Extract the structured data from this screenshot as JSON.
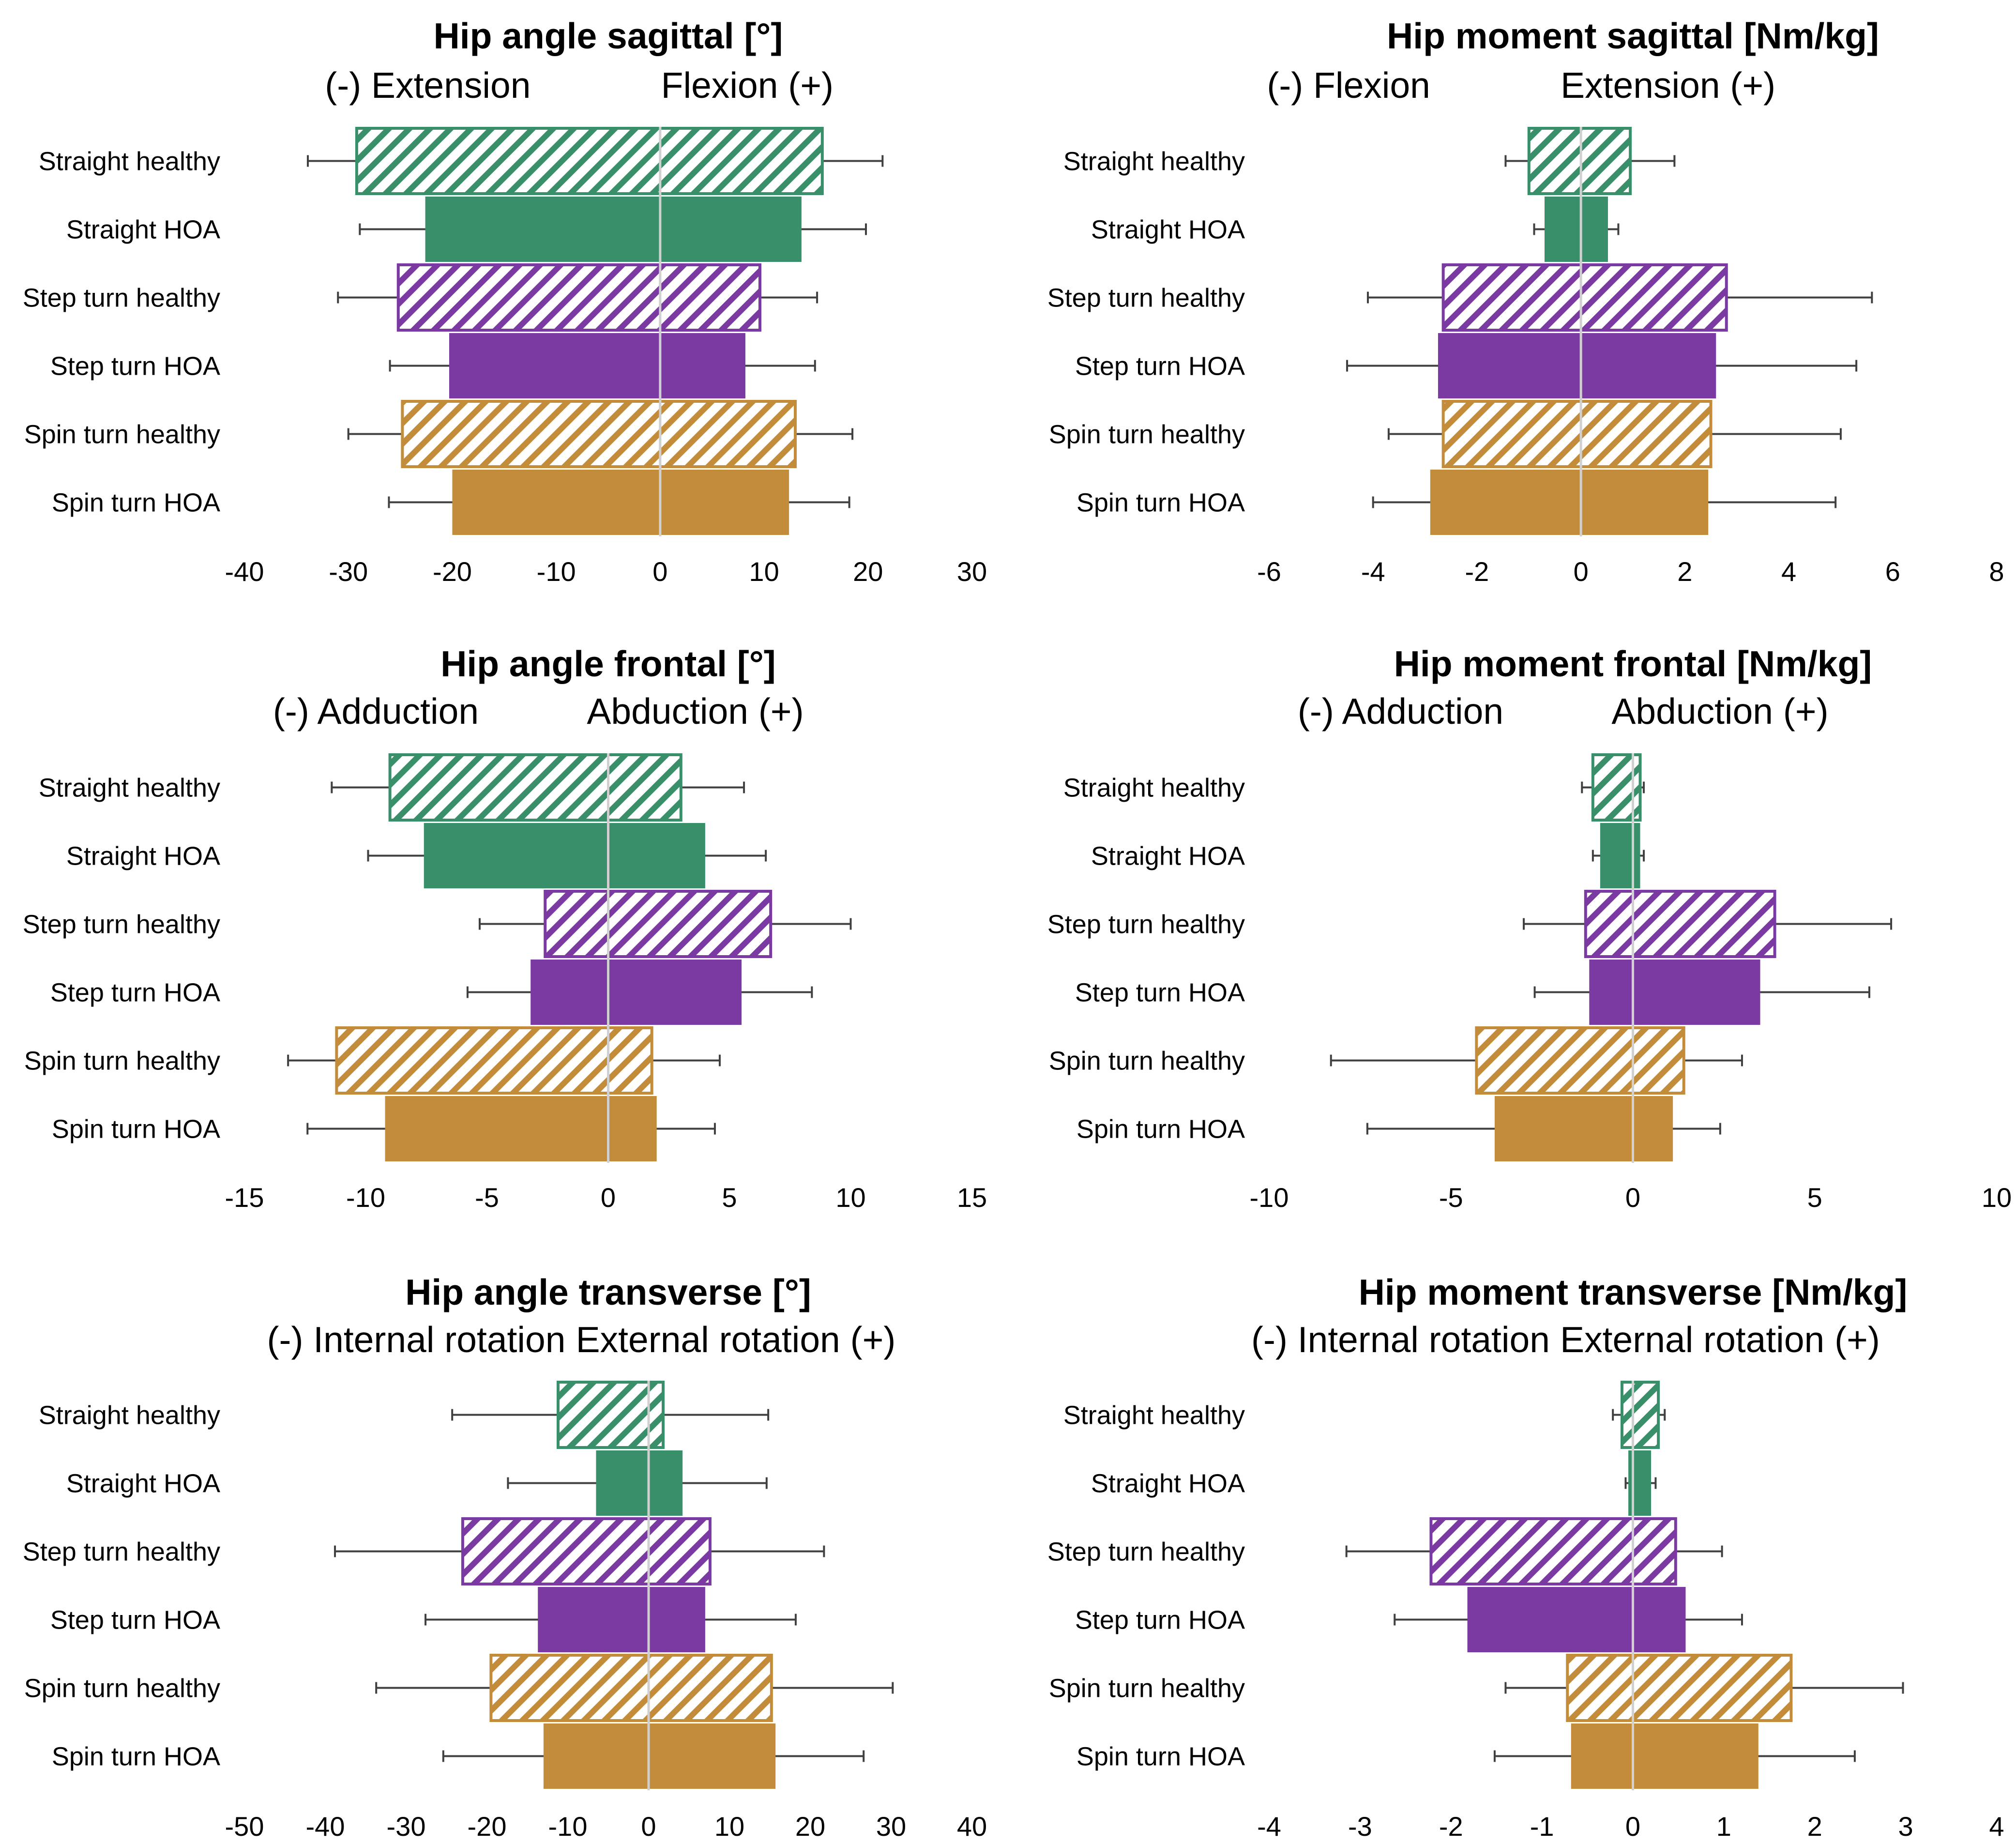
{
  "colors": {
    "green": "#3a8f6b",
    "purple": "#7a3aa2",
    "orange": "#c38c3a",
    "zero_line": "#d0d0d0",
    "error_bar": "#404040"
  },
  "chart_data": [
    {
      "type": "bar",
      "orientation": "horizontal-range",
      "title": "Hip angle sagittal [°]",
      "neg_label": "(-) Extension",
      "pos_label": "Flexion (+)",
      "xlim": [
        -40,
        30
      ],
      "ticks": [
        -40,
        -30,
        -20,
        -10,
        0,
        10,
        20,
        30
      ],
      "tick_labels": [
        "-40",
        "-30",
        "-20",
        "-10",
        "0",
        "10",
        "20",
        "30"
      ],
      "categories": [
        "Straight healthy",
        "Straight HOA",
        "Step turn healthy",
        "Step turn HOA",
        "Spin turn healthy",
        "Spin turn HOA"
      ],
      "min": [
        -29.2,
        -22.6,
        -25.2,
        -20.3,
        -24.8,
        -20.0
      ],
      "max": [
        15.6,
        13.6,
        9.6,
        8.2,
        13.0,
        12.4
      ],
      "min_err": [
        -33.9,
        -28.9,
        -31.0,
        -26.0,
        -30.0,
        -26.1
      ],
      "max_err": [
        21.4,
        19.8,
        15.1,
        14.9,
        18.5,
        18.2
      ],
      "colors": [
        "green",
        "green",
        "purple",
        "purple",
        "orange",
        "orange"
      ],
      "hatched": [
        true,
        false,
        true,
        false,
        true,
        false
      ]
    },
    {
      "type": "bar",
      "orientation": "horizontal-range",
      "title": "Hip moment sagittal [Nm/kg]",
      "neg_label": "(-) Flexion",
      "pos_label": "Extension (+)",
      "xlim": [
        -6,
        8
      ],
      "ticks": [
        -6,
        -4,
        -2,
        0,
        2,
        4,
        6,
        8
      ],
      "tick_labels": [
        "-6",
        "-4",
        "-2",
        "0",
        "2",
        "4",
        "6",
        "8"
      ],
      "categories": [
        "Straight healthy",
        "Straight HOA",
        "Step turn healthy",
        "Step turn HOA",
        "Spin turn healthy",
        "Spin turn HOA"
      ],
      "min": [
        -1.0,
        -0.7,
        -2.65,
        -2.75,
        -2.65,
        -2.9
      ],
      "max": [
        0.95,
        0.52,
        2.8,
        2.6,
        2.5,
        2.45
      ],
      "min_err": [
        -1.45,
        -0.9,
        -4.1,
        -4.5,
        -3.7,
        -4.0
      ],
      "max_err": [
        1.8,
        0.72,
        5.6,
        5.3,
        5.0,
        4.9
      ],
      "colors": [
        "green",
        "green",
        "purple",
        "purple",
        "orange",
        "orange"
      ],
      "hatched": [
        true,
        false,
        true,
        false,
        true,
        false
      ]
    },
    {
      "type": "bar",
      "orientation": "horizontal-range",
      "title": "Hip angle frontal [°]",
      "neg_label": "(-) Adduction",
      "pos_label": "Abduction (+)",
      "xlim": [
        -15,
        15
      ],
      "ticks": [
        -15,
        -10,
        -5,
        0,
        5,
        10,
        15
      ],
      "tick_labels": [
        "-15",
        "-10",
        "-5",
        "0",
        "5",
        "10",
        "15"
      ],
      "categories": [
        "Straight healthy",
        "Straight HOA",
        "Step turn healthy",
        "Step turn HOA",
        "Spin turn healthy",
        "Spin turn HOA"
      ],
      "min": [
        -9.0,
        -7.6,
        -2.6,
        -3.2,
        -11.2,
        -9.2
      ],
      "max": [
        3.0,
        4.0,
        6.7,
        5.5,
        1.8,
        2.0
      ],
      "min_err": [
        -11.4,
        -9.9,
        -5.3,
        -5.8,
        -13.2,
        -12.4
      ],
      "max_err": [
        5.6,
        6.5,
        10.0,
        8.4,
        4.6,
        4.4
      ],
      "colors": [
        "green",
        "green",
        "purple",
        "purple",
        "orange",
        "orange"
      ],
      "hatched": [
        true,
        false,
        true,
        false,
        true,
        false
      ]
    },
    {
      "type": "bar",
      "orientation": "horizontal-range",
      "title": "Hip moment frontal [Nm/kg]",
      "neg_label": "(-) Adduction",
      "pos_label": "Abduction (+)",
      "xlim": [
        -10,
        10
      ],
      "ticks": [
        -10,
        -5,
        0,
        5,
        10
      ],
      "tick_labels": [
        "-10",
        "-5",
        "0",
        "5",
        "10"
      ],
      "categories": [
        "Straight healthy",
        "Straight HOA",
        "Step turn healthy",
        "Step turn HOA",
        "Spin turn healthy",
        "Spin turn HOA"
      ],
      "min": [
        -1.1,
        -0.9,
        -1.3,
        -1.2,
        -4.3,
        -3.8
      ],
      "max": [
        0.2,
        0.2,
        3.9,
        3.5,
        1.4,
        1.1
      ],
      "min_err": [
        -1.4,
        -1.1,
        -3.0,
        -2.7,
        -8.3,
        -7.3
      ],
      "max_err": [
        0.3,
        0.3,
        7.1,
        6.5,
        3.0,
        2.4
      ],
      "colors": [
        "green",
        "green",
        "purple",
        "purple",
        "orange",
        "orange"
      ],
      "hatched": [
        true,
        false,
        true,
        false,
        true,
        false
      ]
    },
    {
      "type": "bar",
      "orientation": "horizontal-range",
      "title": "Hip angle transverse [°]",
      "neg_label": "(-) Internal rotation",
      "pos_label": "External rotation (+)",
      "xlim": [
        -50,
        40
      ],
      "ticks": [
        -50,
        -40,
        -30,
        -20,
        -10,
        0,
        10,
        20,
        30,
        40
      ],
      "tick_labels": [
        "-50",
        "-40",
        "-30",
        "-20",
        "-10",
        "0",
        "10",
        "20",
        "30",
        "40"
      ],
      "categories": [
        "Straight healthy",
        "Straight HOA",
        "Step turn healthy",
        "Step turn HOA",
        "Spin turn healthy",
        "Spin turn HOA"
      ],
      "min": [
        -11.2,
        -6.5,
        -23.0,
        -13.7,
        -19.5,
        -13.0
      ],
      "max": [
        1.8,
        4.2,
        7.6,
        7.0,
        15.2,
        15.7
      ],
      "min_err": [
        -24.3,
        -17.4,
        -38.8,
        -27.6,
        -33.7,
        -25.4
      ],
      "max_err": [
        14.8,
        14.6,
        21.7,
        18.2,
        30.2,
        26.6
      ],
      "colors": [
        "green",
        "green",
        "purple",
        "purple",
        "orange",
        "orange"
      ],
      "hatched": [
        true,
        false,
        true,
        false,
        true,
        false
      ]
    },
    {
      "type": "bar",
      "orientation": "horizontal-range",
      "title": "Hip moment transverse [Nm/kg]",
      "neg_label": "(-) Internal rotation",
      "pos_label": "External rotation (+)",
      "xlim": [
        -4,
        4
      ],
      "ticks": [
        -4,
        -3,
        -2,
        -1,
        0,
        1,
        2,
        3,
        4
      ],
      "tick_labels": [
        "-4",
        "-3",
        "-2",
        "-1",
        "0",
        "1",
        "2",
        "3",
        "4"
      ],
      "categories": [
        "Straight healthy",
        "Straight HOA",
        "Step turn healthy",
        "Step turn HOA",
        "Spin turn healthy",
        "Spin turn HOA"
      ],
      "min": [
        -0.12,
        -0.05,
        -2.22,
        -1.82,
        -0.72,
        -0.68
      ],
      "max": [
        0.28,
        0.2,
        0.47,
        0.58,
        1.74,
        1.38
      ],
      "min_err": [
        -0.22,
        -0.08,
        -3.15,
        -2.62,
        -1.4,
        -1.52
      ],
      "max_err": [
        0.35,
        0.25,
        0.98,
        1.2,
        2.97,
        2.44
      ],
      "colors": [
        "green",
        "green",
        "purple",
        "purple",
        "orange",
        "orange"
      ],
      "hatched": [
        true,
        false,
        true,
        false,
        true,
        false
      ]
    }
  ]
}
